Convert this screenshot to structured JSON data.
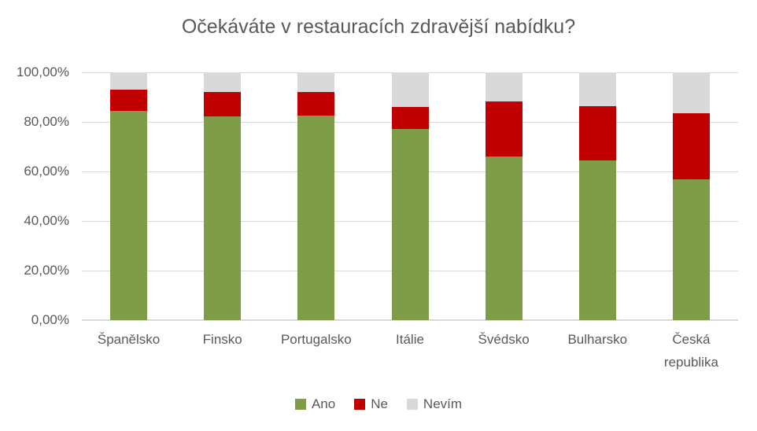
{
  "chart_data": {
    "type": "bar",
    "stacked": true,
    "orientation": "vertical",
    "title": "Očekáváte v restauracích zdravější nabídku?",
    "values_unit": "percent",
    "categories": [
      "Španělsko",
      "Finsko",
      "Portugalsko",
      "Itálie",
      "Švédsko",
      "Bulharsko",
      "Česká republika"
    ],
    "series": [
      {
        "name": "Ano",
        "color": "#7F9C49",
        "values": [
          84.4,
          82.3,
          82.5,
          77.1,
          65.9,
          64.3,
          56.9
        ]
      },
      {
        "name": "Ne",
        "color": "#C00000",
        "values": [
          8.5,
          9.7,
          9.7,
          8.9,
          22.5,
          21.9,
          26.7
        ]
      },
      {
        "name": "Nevím",
        "color": "#D9D9D9",
        "values": [
          7.1,
          8.0,
          7.8,
          14.0,
          11.6,
          13.8,
          16.4
        ]
      }
    ],
    "ylim": [
      0,
      100
    ],
    "yticks": [
      {
        "label": "0,00%",
        "value": 0
      },
      {
        "label": "20,00%",
        "value": 20
      },
      {
        "label": "40,00%",
        "value": 40
      },
      {
        "label": "60,00%",
        "value": 60
      },
      {
        "label": "80,00%",
        "value": 80
      },
      {
        "label": "100,00%",
        "value": 100
      }
    ],
    "grid": true,
    "legend_position": "bottom",
    "colors": {
      "title_text": "#595959",
      "axis_text": "#595959",
      "gridline": "#D9D9D9"
    }
  }
}
